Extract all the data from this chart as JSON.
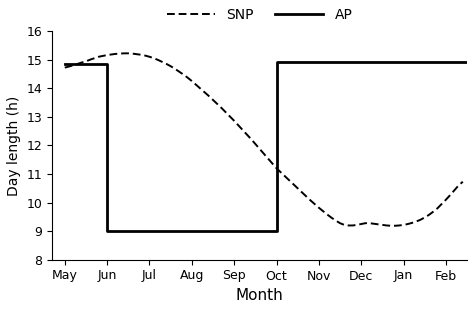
{
  "xlabel": "Month",
  "ylabel": "Day length (h)",
  "ylim": [
    8,
    16
  ],
  "yticks": [
    8,
    9,
    10,
    11,
    12,
    13,
    14,
    15,
    16
  ],
  "month_labels": [
    "May",
    "Jun",
    "Jul",
    "Aug",
    "Sep",
    "Oct",
    "Nov",
    "Dec",
    "Jan",
    "Feb"
  ],
  "month_positions": [
    0,
    1,
    2,
    3,
    4,
    5,
    6,
    7,
    8,
    9
  ],
  "ap_x": [
    0,
    1,
    1,
    5,
    5,
    9.5
  ],
  "ap_y": [
    14.85,
    14.85,
    9.0,
    9.0,
    14.9,
    14.9
  ],
  "snp_x": [
    0.0,
    0.1,
    0.2,
    0.3,
    0.4,
    0.5,
    0.6,
    0.7,
    0.8,
    0.9,
    1.0,
    1.1,
    1.2,
    1.3,
    1.4,
    1.5,
    1.6,
    1.7,
    1.8,
    1.9,
    2.0,
    2.1,
    2.2,
    2.3,
    2.4,
    2.5,
    2.6,
    2.7,
    2.8,
    2.9,
    3.0,
    3.1,
    3.2,
    3.3,
    3.4,
    3.5,
    3.6,
    3.7,
    3.8,
    3.9,
    4.0,
    4.1,
    4.2,
    4.3,
    4.4,
    4.5,
    4.6,
    4.7,
    4.8,
    4.9,
    5.0,
    5.1,
    5.2,
    5.3,
    5.4,
    5.5,
    5.6,
    5.7,
    5.8,
    5.9,
    6.0,
    6.1,
    6.2,
    6.3,
    6.4,
    6.5,
    6.6,
    6.7,
    6.8,
    6.9,
    7.0,
    7.1,
    7.2,
    7.3,
    7.4,
    7.5,
    7.6,
    7.7,
    7.8,
    7.9,
    8.0,
    8.1,
    8.2,
    8.3,
    8.4,
    8.5,
    8.6,
    8.7,
    8.8,
    8.9,
    9.0,
    9.1,
    9.2,
    9.3,
    9.4
  ],
  "snp_y": [
    14.72,
    14.76,
    14.8,
    14.85,
    14.9,
    14.94,
    15.0,
    15.05,
    15.1,
    15.13,
    15.16,
    15.18,
    15.2,
    15.21,
    15.22,
    15.22,
    15.21,
    15.19,
    15.17,
    15.14,
    15.1,
    15.05,
    14.99,
    14.92,
    14.85,
    14.77,
    14.68,
    14.58,
    14.48,
    14.37,
    14.25,
    14.12,
    13.99,
    13.86,
    13.73,
    13.59,
    13.45,
    13.31,
    13.16,
    13.01,
    12.86,
    12.7,
    12.54,
    12.38,
    12.22,
    12.05,
    11.88,
    11.71,
    11.54,
    11.37,
    11.2,
    11.06,
    10.92,
    10.78,
    10.64,
    10.5,
    10.36,
    10.22,
    10.08,
    9.95,
    9.82,
    9.7,
    9.58,
    9.47,
    9.37,
    9.28,
    9.22,
    9.2,
    9.2,
    9.22,
    9.25,
    9.28,
    9.28,
    9.26,
    9.24,
    9.22,
    9.2,
    9.19,
    9.19,
    9.2,
    9.22,
    9.25,
    9.29,
    9.34,
    9.4,
    9.48,
    9.57,
    9.68,
    9.8,
    9.95,
    10.1,
    10.26,
    10.43,
    10.6,
    10.73
  ],
  "line_color": "#000000",
  "background_color": "#ffffff",
  "legend_snp": "SNP",
  "legend_ap": "AP",
  "figsize": [
    4.74,
    3.1
  ],
  "dpi": 100
}
